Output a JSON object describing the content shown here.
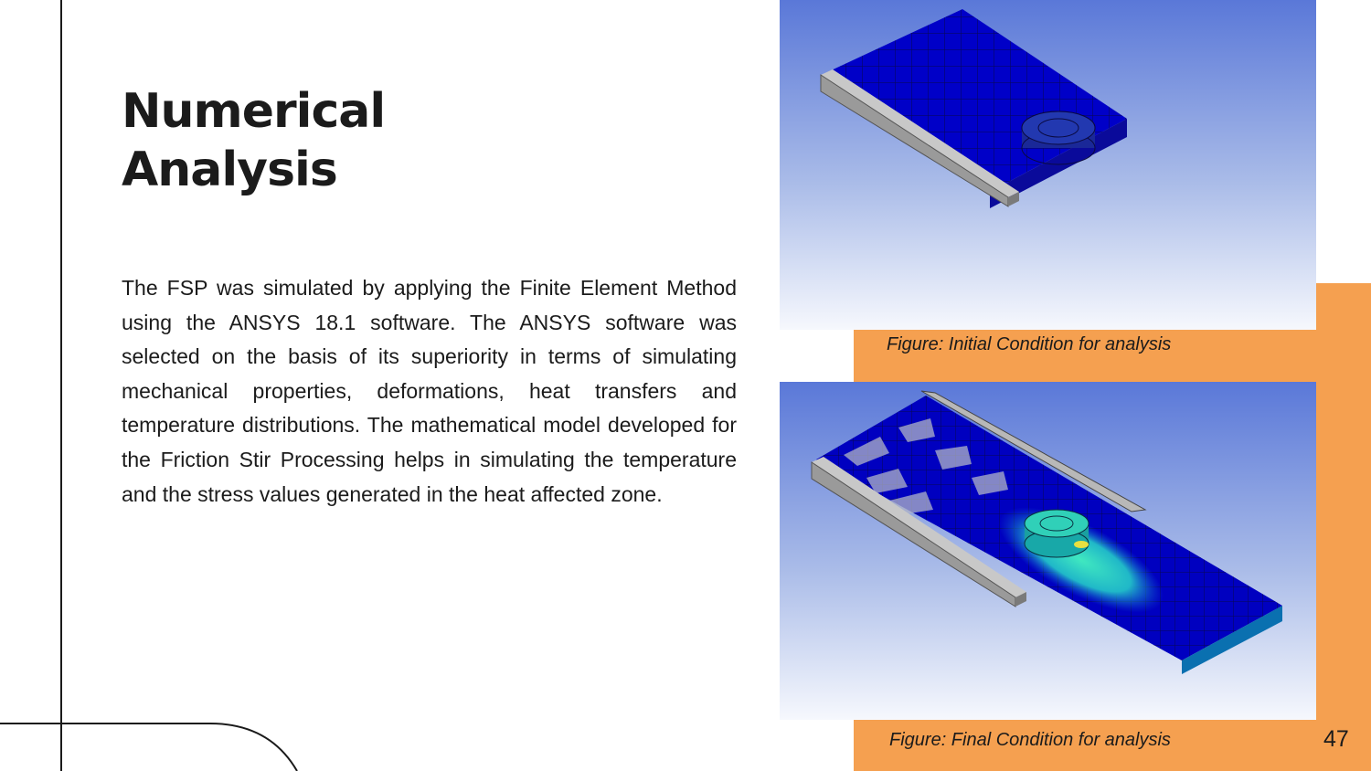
{
  "slide": {
    "title_line1": "Numerical",
    "title_line2": "Analysis",
    "body": "The FSP was simulated by applying the Finite Element Method using the ANSYS 18.1 software. The ANSYS software was selected on the basis of its superiority in terms of simulating mechanical properties, deformations, heat transfers and temperature distributions. The mathematical model developed for the Friction Stir Processing helps in simulating the temperature and the stress values generated in the heat affected zone.",
    "page_number": "47"
  },
  "figures": [
    {
      "caption": "Figure: Initial Condition for analysis"
    },
    {
      "caption": "Figure: Final Condition for analysis"
    }
  ],
  "colors": {
    "accent_orange": "#f5a050",
    "text_dark": "#1b1b1b",
    "mesh_blue": "#0000c8",
    "mesh_heat": "#20c8c0"
  }
}
